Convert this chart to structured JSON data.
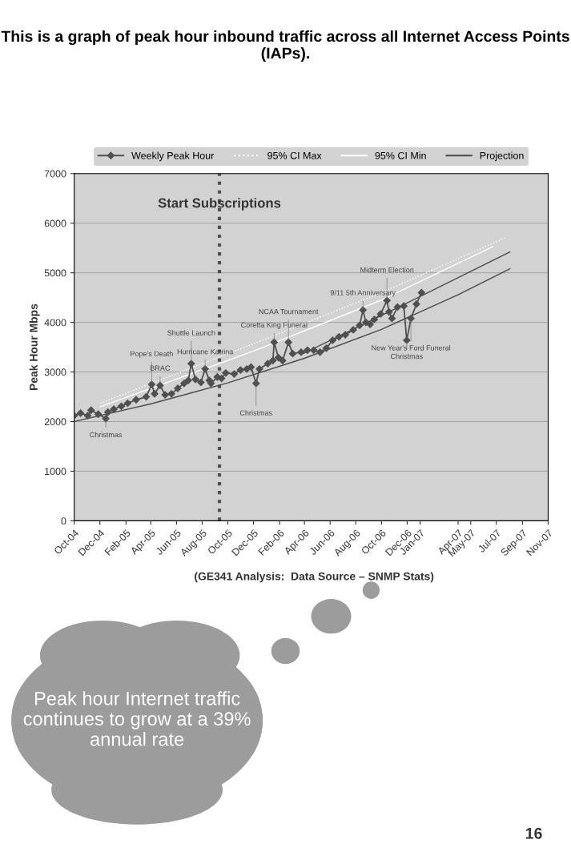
{
  "chart_data": {
    "type": "line",
    "title": "This is a graph of peak hour inbound traffic across all Internet Access Points (IAPs).",
    "ylabel": "Peak Hour Mbps",
    "ylim": [
      0,
      7000
    ],
    "yticks": [
      0,
      1000,
      2000,
      3000,
      4000,
      5000,
      6000,
      7000
    ],
    "xlim": [
      "2004-10-01",
      "2007-11-01"
    ],
    "xticks": [
      {
        "value": "2004-10-01",
        "label": "Oct-04"
      },
      {
        "value": "2004-12-01",
        "label": "Dec-04"
      },
      {
        "value": "2005-02-01",
        "label": "Feb-05"
      },
      {
        "value": "2005-04-01",
        "label": "Apr-05"
      },
      {
        "value": "2005-06-01",
        "label": "Jun-05"
      },
      {
        "value": "2005-08-01",
        "label": "Aug-05"
      },
      {
        "value": "2005-10-01",
        "label": "Oct-05"
      },
      {
        "value": "2005-12-01",
        "label": "Dec-05"
      },
      {
        "value": "2006-02-01",
        "label": "Feb-06"
      },
      {
        "value": "2006-04-01",
        "label": "Apr-06"
      },
      {
        "value": "2006-06-01",
        "label": "Jun-06"
      },
      {
        "value": "2006-08-01",
        "label": "Aug-06"
      },
      {
        "value": "2006-10-01",
        "label": "Oct-06"
      },
      {
        "value": "2006-12-01",
        "label": "Dec-06"
      },
      {
        "value": "2007-01-01",
        "label": "Jan-07"
      },
      {
        "value": "2007-04-01",
        "label": "Apr-07"
      },
      {
        "value": "2007-05-01",
        "label": "May-07"
      },
      {
        "value": "2007-07-01",
        "label": "Jul-07"
      },
      {
        "value": "2007-09-01",
        "label": "Sep-07"
      },
      {
        "value": "2007-11-01",
        "label": "Nov-07"
      }
    ],
    "grid": "y",
    "legend": "top",
    "series": [
      {
        "name": "Weekly Peak Hour",
        "color": "#505050",
        "marker": "diamond",
        "line_style": "solid",
        "x": [
          "2004-10-01",
          "2004-10-16",
          "2004-11-02",
          "2004-11-10",
          "2004-11-27",
          "2004-12-15",
          "2004-12-20",
          "2005-01-03",
          "2005-01-21",
          "2005-02-05",
          "2005-02-25",
          "2005-03-21",
          "2005-04-03",
          "2005-04-10",
          "2005-04-23",
          "2005-05-05",
          "2005-05-20",
          "2005-06-04",
          "2005-06-19",
          "2005-06-29",
          "2005-07-06",
          "2005-07-16",
          "2005-07-29",
          "2005-08-08",
          "2005-08-18",
          "2005-08-22",
          "2005-09-06",
          "2005-09-16",
          "2005-09-26",
          "2005-10-16",
          "2005-10-31",
          "2005-11-15",
          "2005-11-25",
          "2005-12-07",
          "2005-12-15",
          "2006-01-04",
          "2006-01-16",
          "2006-01-19",
          "2006-01-29",
          "2006-02-08",
          "2006-02-22",
          "2006-03-04",
          "2006-03-24",
          "2006-04-08",
          "2006-04-23",
          "2006-05-08",
          "2006-05-23",
          "2006-06-07",
          "2006-06-22",
          "2006-07-07",
          "2006-07-26",
          "2006-08-10",
          "2006-08-18",
          "2006-08-25",
          "2006-09-04",
          "2006-09-14",
          "2006-09-29",
          "2006-10-14",
          "2006-10-19",
          "2006-10-26",
          "2006-11-08",
          "2006-11-23",
          "2006-11-30",
          "2006-12-10",
          "2006-12-23",
          "2007-01-04"
        ],
        "values": [
          2120,
          2170,
          2120,
          2230,
          2150,
          2060,
          2190,
          2250,
          2310,
          2370,
          2440,
          2500,
          2750,
          2560,
          2730,
          2540,
          2560,
          2670,
          2770,
          2830,
          3170,
          2850,
          2790,
          3060,
          2830,
          2770,
          2900,
          2870,
          2980,
          2960,
          3040,
          3060,
          3100,
          2770,
          3060,
          3170,
          3230,
          3600,
          3290,
          3230,
          3600,
          3370,
          3400,
          3440,
          3440,
          3400,
          3480,
          3640,
          3710,
          3750,
          3850,
          3940,
          4250,
          4000,
          3960,
          4060,
          4170,
          4440,
          4210,
          4080,
          4310,
          4330,
          3640,
          4080,
          4370,
          4600
        ]
      },
      {
        "name": "95% CI Max",
        "color": "#ffffff",
        "marker": "none",
        "line_style": "dotted",
        "x": [
          "2004-12-02",
          "2005-12-10",
          "2006-10-01",
          "2007-07-23"
        ],
        "values": [
          2370,
          3600,
          4600,
          5710
        ]
      },
      {
        "name": "95% CI Min",
        "color": "#ffffff",
        "marker": "none",
        "line_style": "solid",
        "x": [
          "2004-12-02",
          "2005-12-10",
          "2006-10-01",
          "2007-06-23"
        ],
        "values": [
          2300,
          3450,
          4450,
          5530
        ]
      },
      {
        "name": "Projection",
        "color": "#4a4a4a",
        "marker": "none",
        "line_style": "solid",
        "x": [
          "2004-10-01",
          "2005-04-02",
          "2005-10-01",
          "2006-04-02",
          "2006-10-01",
          "2007-04-02",
          "2007-08-02"
        ],
        "values": [
          2000,
          2360,
          2780,
          3280,
          3860,
          4560,
          5080
        ]
      },
      {
        "color": "#4a4a4a",
        "marker": "none",
        "line_style": "solid",
        "x": [
          "2006-03-29",
          "2006-11-23",
          "2007-08-02"
        ],
        "values": [
          3370,
          4360,
          5420
        ]
      }
    ],
    "ref_lines": [
      {
        "axis": "x",
        "value": "2005-09-11",
        "label": "Start Subscriptions",
        "color": "#505050",
        "line_style": "dotted"
      }
    ],
    "annotations": [
      "Peak hour Internet traffic continues to grow at a 39% annual rate",
      "(GE341 Analysis:  Data Source – SNMP Stats)",
      "16",
      {
        "text": "Christmas",
        "x": "2004-12-15",
        "y": 2060
      },
      {
        "text": "Pope's Death",
        "x": "2005-04-03",
        "y": 2750
      },
      {
        "text": "BRAC",
        "x": "2005-04-23",
        "y": 2730
      },
      {
        "text": "Shuttle Launch",
        "x": "2005-07-06",
        "y": 3170
      },
      {
        "text": "Hurricane Katrina",
        "x": "2005-08-08",
        "y": 3060
      },
      {
        "text": "Christmas",
        "x": "2005-12-07",
        "y": 2770
      },
      {
        "text": "Coretta King Funeral",
        "x": "2006-01-19",
        "y": 3600
      },
      {
        "text": "NCAA Tournament",
        "x": "2006-02-22",
        "y": 3600
      },
      {
        "text": "9/11 5th Anniversary",
        "x": "2006-08-18",
        "y": 4250
      },
      {
        "text": "Midterm Election",
        "x": "2006-10-14",
        "y": 4440
      },
      {
        "text": "Christmas",
        "x": "2006-11-30",
        "y": 3640
      },
      {
        "text": "New Year's Ford Funeral",
        "x": "2006-12-10",
        "y": 4080
      }
    ]
  }
}
